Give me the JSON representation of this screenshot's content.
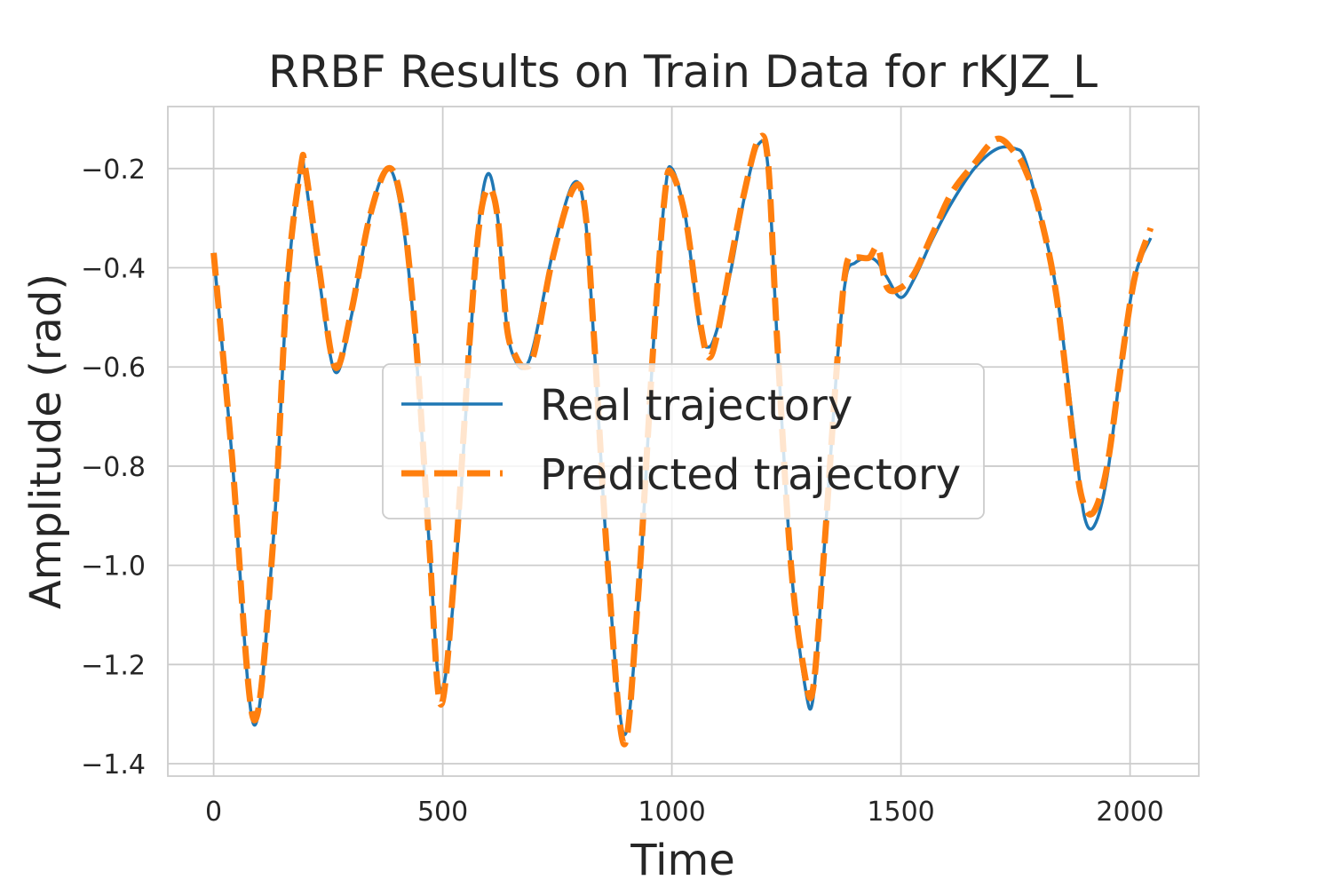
{
  "chart_data": {
    "type": "line",
    "title": "RRBF Results on Train Data for rKJZ_L",
    "xlabel": "Time",
    "ylabel": "Amplitude (rad)",
    "xlim": [
      -100,
      2150
    ],
    "ylim": [
      -1.425,
      -0.075
    ],
    "xticks": [
      0,
      500,
      1000,
      1500,
      2000
    ],
    "xtick_labels": [
      "0",
      "500",
      "1000",
      "1500",
      "2000"
    ],
    "yticks": [
      -0.2,
      -0.4,
      -0.6,
      -0.8,
      -1.0,
      -1.2,
      -1.4
    ],
    "ytick_labels": [
      "−0.2",
      "−0.4",
      "−0.6",
      "−0.8",
      "−1.0",
      "−1.2",
      "−1.4"
    ],
    "grid": true,
    "legend_position": "center",
    "series": [
      {
        "name": "Real trajectory",
        "color": "#1f77b4",
        "style": "solid",
        "x": [
          0,
          40,
          87,
          130,
          160,
          190,
          200,
          230,
          265,
          300,
          340,
          380,
          410,
          440,
          470,
          495,
          525,
          560,
          580,
          600,
          620,
          640,
          660,
          680,
          700,
          740,
          785,
          810,
          830,
          860,
          895,
          925,
          960,
          985,
          1000,
          1030,
          1060,
          1080,
          1100,
          1130,
          1160,
          1190,
          1210,
          1230,
          1260,
          1290,
          1308,
          1330,
          1360,
          1380,
          1400,
          1430,
          1450,
          1470,
          1500,
          1530,
          1570,
          1610,
          1660,
          1710,
          1750,
          1770,
          1800,
          1840,
          1880,
          1900,
          1922,
          1950,
          1980,
          2010,
          2045
        ],
        "y": [
          -0.37,
          -0.78,
          -1.32,
          -0.95,
          -0.45,
          -0.2,
          -0.22,
          -0.42,
          -0.61,
          -0.5,
          -0.3,
          -0.2,
          -0.29,
          -0.55,
          -0.95,
          -1.25,
          -1.05,
          -0.55,
          -0.3,
          -0.21,
          -0.3,
          -0.52,
          -0.59,
          -0.6,
          -0.55,
          -0.37,
          -0.23,
          -0.29,
          -0.55,
          -1.0,
          -1.34,
          -1.1,
          -0.55,
          -0.25,
          -0.2,
          -0.3,
          -0.52,
          -0.56,
          -0.52,
          -0.4,
          -0.25,
          -0.15,
          -0.2,
          -0.55,
          -1.0,
          -1.24,
          -1.27,
          -1.0,
          -0.6,
          -0.42,
          -0.39,
          -0.38,
          -0.39,
          -0.42,
          -0.46,
          -0.42,
          -0.34,
          -0.27,
          -0.2,
          -0.16,
          -0.16,
          -0.18,
          -0.28,
          -0.45,
          -0.75,
          -0.9,
          -0.92,
          -0.82,
          -0.6,
          -0.42,
          -0.34
        ]
      },
      {
        "name": "Predicted trajectory",
        "color": "#ff7f0e",
        "style": "dashed",
        "x": [
          0,
          40,
          87,
          130,
          160,
          190,
          200,
          230,
          265,
          300,
          340,
          380,
          410,
          440,
          470,
          495,
          525,
          560,
          580,
          600,
          620,
          640,
          660,
          680,
          700,
          740,
          785,
          810,
          830,
          860,
          895,
          925,
          960,
          985,
          1000,
          1030,
          1060,
          1080,
          1100,
          1130,
          1160,
          1190,
          1210,
          1230,
          1260,
          1290,
          1308,
          1330,
          1360,
          1380,
          1400,
          1430,
          1450,
          1470,
          1500,
          1530,
          1570,
          1610,
          1660,
          1710,
          1750,
          1770,
          1800,
          1840,
          1880,
          1900,
          1922,
          1950,
          1980,
          2010,
          2045
        ],
        "y": [
          -0.37,
          -0.78,
          -1.31,
          -0.95,
          -0.44,
          -0.2,
          -0.2,
          -0.4,
          -0.6,
          -0.49,
          -0.3,
          -0.2,
          -0.27,
          -0.53,
          -0.95,
          -1.28,
          -1.02,
          -0.53,
          -0.31,
          -0.24,
          -0.3,
          -0.52,
          -0.58,
          -0.6,
          -0.57,
          -0.38,
          -0.24,
          -0.28,
          -0.54,
          -1.0,
          -1.36,
          -1.08,
          -0.55,
          -0.25,
          -0.21,
          -0.3,
          -0.5,
          -0.58,
          -0.53,
          -0.38,
          -0.24,
          -0.14,
          -0.19,
          -0.55,
          -1.0,
          -1.22,
          -1.25,
          -1.0,
          -0.6,
          -0.4,
          -0.38,
          -0.38,
          -0.36,
          -0.44,
          -0.44,
          -0.41,
          -0.33,
          -0.25,
          -0.19,
          -0.14,
          -0.17,
          -0.2,
          -0.28,
          -0.46,
          -0.78,
          -0.88,
          -0.89,
          -0.8,
          -0.6,
          -0.42,
          -0.32
        ]
      }
    ]
  }
}
